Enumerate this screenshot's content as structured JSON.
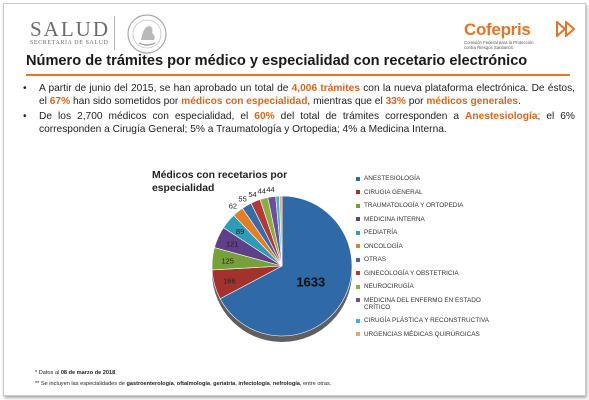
{
  "header": {
    "salud_word": "SALUD",
    "salud_sub": "SECRETARÍA DE SALUD",
    "cofepris_logo": "Cofepris",
    "cofepris_line1": "Comisión Federal para la Protección",
    "cofepris_line2": "contra Riesgos Sanitarios"
  },
  "title": "Número de trámites por médico y especialidad con recetario electrónico",
  "bullet1": {
    "t1": "A partir de junio del 2015, se han aprobado un total de ",
    "h1": "4,006 trámites",
    "t2": " con la nueva plataforma electrónica. De éstos, el ",
    "h2": "67%",
    "t3": " han sido sometidos por ",
    "h3": "médicos con especialidad",
    "t4": ", mientras que el ",
    "h4": "33%",
    "t5": " por ",
    "h5": "médicos generales",
    "t6": "."
  },
  "bullet2": {
    "t1": "De los 2,700 médicos con especialidad, el ",
    "h1": "60%",
    "t2": " del total de trámites corresponden a ",
    "h2": "Anestesiología",
    "t3": "; el 6% corresponden a Cirugía General; 5% a Traumatología y Ortopedia; 4% a Medicina Interna."
  },
  "footnotes": {
    "f1_pre": "* Datos al ",
    "f1_bold": "08 de marzo de 2018",
    "f1_post": ".",
    "f2_pre": "** Se incluyen las especialidades de ",
    "f2_b1": "gastroenterología",
    "f2_s1": ", ",
    "f2_b2": "oftalmología",
    "f2_s2": ", ",
    "f2_b3": "geriatría",
    "f2_s3": ", ",
    "f2_b4": "infectología",
    "f2_s4": ", ",
    "f2_b5": "nefrología",
    "f2_post": ", entre otras."
  },
  "chart_data": {
    "type": "pie",
    "title": "Médicos con recetarios por especialidad",
    "legend_position": "right",
    "slices": [
      {
        "label": "ANESTESIOLOGÍA",
        "value": 1633,
        "color": "#2f69a6",
        "show_value": true
      },
      {
        "label": "CIRUGIA GENERAL",
        "value": 166,
        "color": "#a3322f",
        "show_value": true
      },
      {
        "label": "TRAUMATOLOGÍA Y ORTOPEDIA",
        "value": 125,
        "color": "#76a03b",
        "show_value": true
      },
      {
        "label": "MEDICINA INTERNA",
        "value": 121,
        "color": "#5f3f88",
        "show_value": true
      },
      {
        "label": "PEDIATRÍA",
        "value": 89,
        "color": "#2f9bb7",
        "show_value": true
      },
      {
        "label": "ONCOLOGÍA",
        "value": 62,
        "color": "#e07f25",
        "show_value": true
      },
      {
        "label": "OTRAS",
        "value": 55,
        "color": "#3a6aa8",
        "show_value": true
      },
      {
        "label": "GINECOLOGÍA Y OBSTETRICIA",
        "value": 54,
        "color": "#b13a36",
        "show_value": true
      },
      {
        "label": "NEUROCIRUGÍA",
        "value": 44,
        "color": "#8aad46",
        "show_value": true
      },
      {
        "label": "MEDICINA DEL ENFERMO EN ESTADO CRÍTICO",
        "value": 44,
        "color": "#6d4f98",
        "show_value": true
      },
      {
        "label": "CIRUGÍA PLÁSTICA Y RECONSTRUCTIVA",
        "value": 20,
        "color": "#3fb1cc",
        "show_value": false
      },
      {
        "label": "URGENCIAS MÉDICAS QUIRÚRGICAS",
        "value": 15,
        "color": "#f0a46b",
        "show_value": false
      }
    ]
  }
}
